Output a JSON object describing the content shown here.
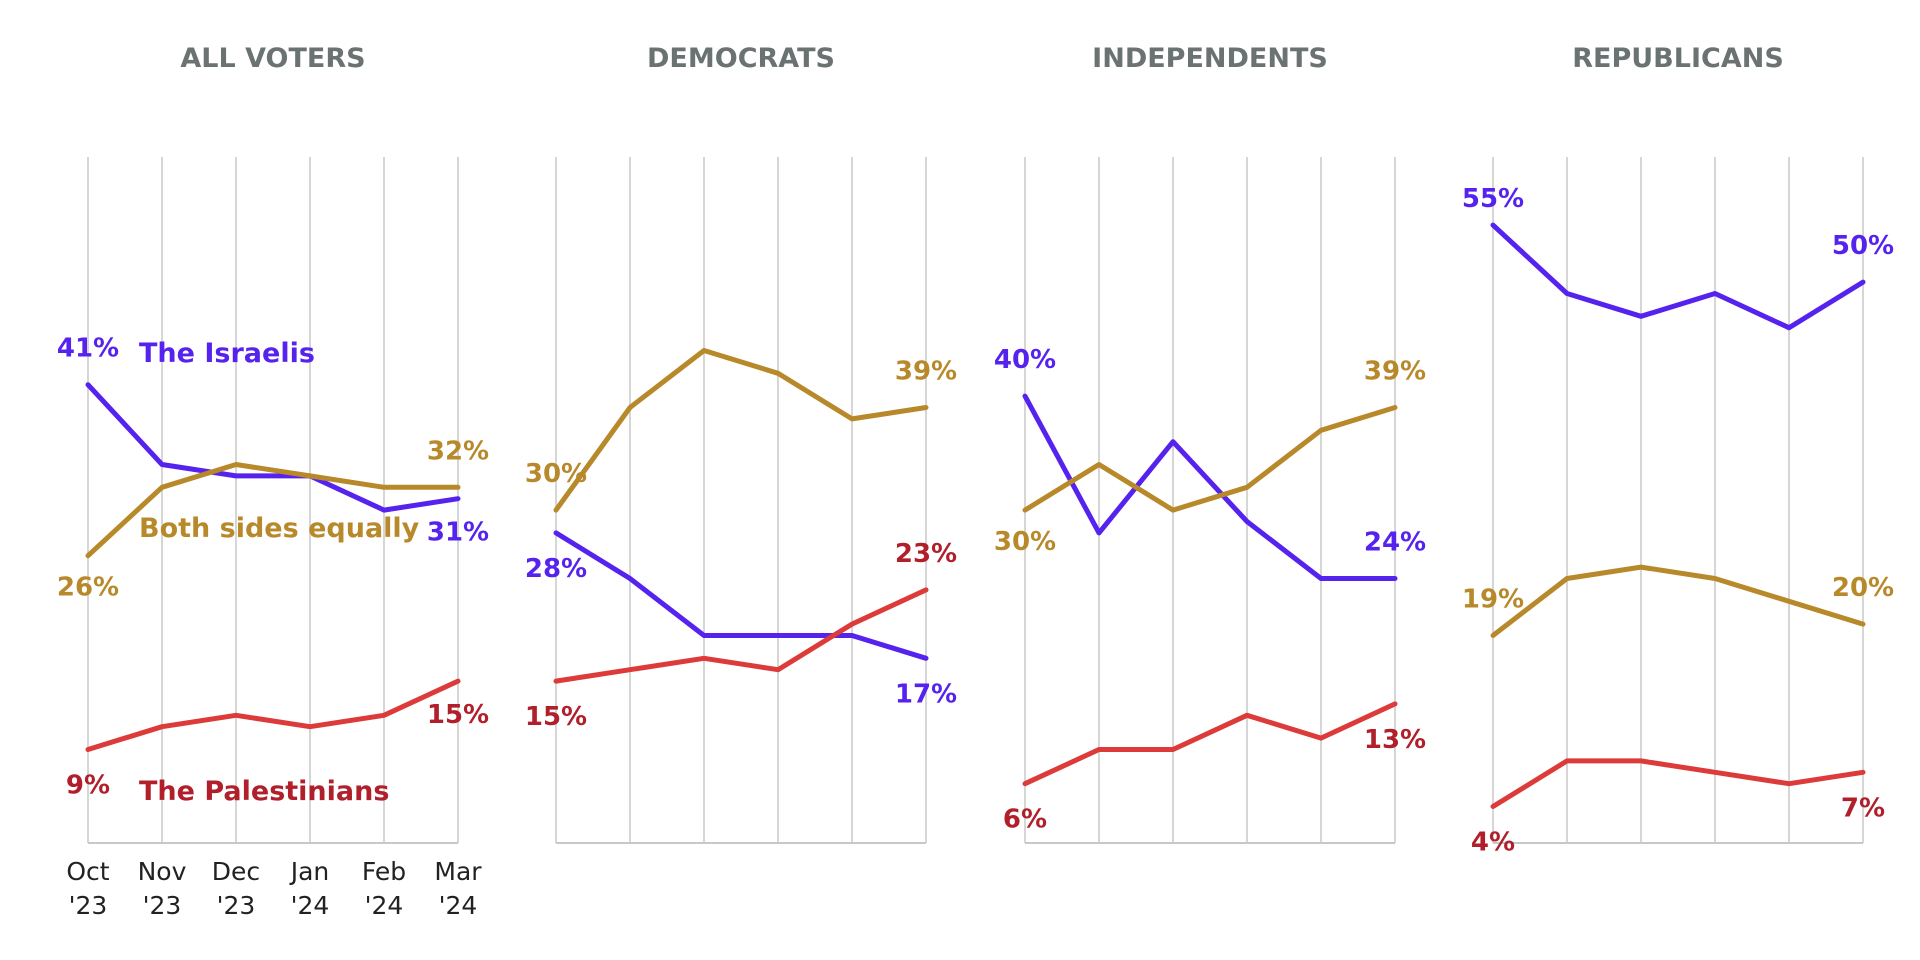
{
  "colors": {
    "israelis": "#5522ee",
    "both": "#b8892a",
    "palestinians_line": "#dd3a3a",
    "palestinians_text": "#b01f2a"
  },
  "chart_data": [
    {
      "type": "line",
      "title": "ALL VOTERS",
      "x": [
        "Oct '23",
        "Nov '23",
        "Dec '23",
        "Jan '24",
        "Feb '24",
        "Mar '24"
      ],
      "tick_labels": [
        [
          "Oct",
          "'23"
        ],
        [
          "Nov",
          "'23"
        ],
        [
          "Dec",
          "'23"
        ],
        [
          "Jan",
          "'24"
        ],
        [
          "Feb",
          "'24"
        ],
        [
          "Mar",
          "'24"
        ]
      ],
      "ylim": [
        0,
        60
      ],
      "grid": true,
      "series": [
        {
          "key": "israelis",
          "name": "The Israelis",
          "values": [
            41,
            34,
            33,
            33,
            30,
            31
          ],
          "labels": [
            "41%",
            "",
            "",
            "",
            "",
            "31%"
          ]
        },
        {
          "key": "both",
          "name": "Both sides equally",
          "values": [
            26,
            32,
            34,
            33,
            32,
            32
          ],
          "labels": [
            "26%",
            "",
            "",
            "",
            "",
            "32%"
          ]
        },
        {
          "key": "palestinians",
          "name": "The Palestinians",
          "values": [
            9,
            11,
            12,
            11,
            12,
            15
          ],
          "labels": [
            "9%",
            "",
            "",
            "",
            "",
            "15%"
          ]
        }
      ]
    },
    {
      "type": "line",
      "title": "DEMOCRATS",
      "x": [
        "Oct '23",
        "Nov '23",
        "Dec '23",
        "Jan '24",
        "Feb '24",
        "Mar '24"
      ],
      "ylim": [
        0,
        60
      ],
      "grid": true,
      "series": [
        {
          "key": "both",
          "values": [
            30,
            39,
            44,
            42,
            38,
            39
          ],
          "labels": [
            "30%",
            "",
            "",
            "",
            "",
            "39%"
          ]
        },
        {
          "key": "israelis",
          "values": [
            28,
            24,
            19,
            19,
            19,
            17
          ],
          "labels": [
            "28%",
            "",
            "",
            "",
            "",
            "17%"
          ]
        },
        {
          "key": "palestinians",
          "values": [
            15,
            16,
            17,
            16,
            20,
            23
          ],
          "labels": [
            "15%",
            "",
            "",
            "",
            "",
            "23%"
          ]
        }
      ]
    },
    {
      "type": "line",
      "title": "INDEPENDENTS",
      "x": [
        "Oct '23",
        "Nov '23",
        "Dec '23",
        "Jan '24",
        "Feb '24",
        "Mar '24"
      ],
      "ylim": [
        0,
        60
      ],
      "grid": true,
      "series": [
        {
          "key": "israelis",
          "values": [
            40,
            28,
            36,
            29,
            24,
            24
          ],
          "labels": [
            "40%",
            "",
            "",
            "",
            "",
            "24%"
          ]
        },
        {
          "key": "both",
          "values": [
            30,
            34,
            30,
            32,
            37,
            39
          ],
          "labels": [
            "30%",
            "",
            "",
            "",
            "",
            "39%"
          ]
        },
        {
          "key": "palestinians",
          "values": [
            6,
            9,
            9,
            12,
            10,
            13
          ],
          "labels": [
            "6%",
            "",
            "",
            "",
            "",
            "13%"
          ]
        }
      ]
    },
    {
      "type": "line",
      "title": "REPUBLICANS",
      "x": [
        "Oct '23",
        "Nov '23",
        "Dec '23",
        "Jan '24",
        "Feb '24",
        "Mar '24"
      ],
      "ylim": [
        0,
        60
      ],
      "grid": true,
      "series": [
        {
          "key": "israelis",
          "values": [
            55,
            49,
            47,
            49,
            46,
            50
          ],
          "labels": [
            "55%",
            "",
            "",
            "",
            "",
            "50%"
          ]
        },
        {
          "key": "both",
          "values": [
            19,
            24,
            25,
            24,
            22,
            20
          ],
          "labels": [
            "19%",
            "",
            "",
            "",
            "",
            "20%"
          ]
        },
        {
          "key": "palestinians",
          "values": [
            4,
            8,
            8,
            7,
            6,
            7
          ],
          "labels": [
            "4%",
            "",
            "",
            "",
            "",
            "7%"
          ]
        }
      ]
    }
  ]
}
